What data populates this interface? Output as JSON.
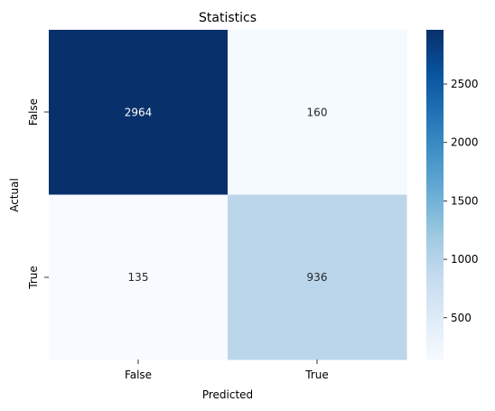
{
  "chart_data": {
    "type": "heatmap",
    "title": "Statistics",
    "xlabel": "Predicted",
    "ylabel": "Actual",
    "x_categories": [
      "False",
      "True"
    ],
    "y_categories": [
      "False",
      "True"
    ],
    "values": [
      [
        2964,
        160
      ],
      [
        135,
        936
      ]
    ],
    "colormap": "Blues",
    "colorbar": {
      "range": [
        135,
        2964
      ],
      "ticks": [
        500,
        1000,
        1500,
        2000,
        2500
      ],
      "tick_labels": [
        "500",
        "1000",
        "1500",
        "2000",
        "2500"
      ]
    }
  }
}
